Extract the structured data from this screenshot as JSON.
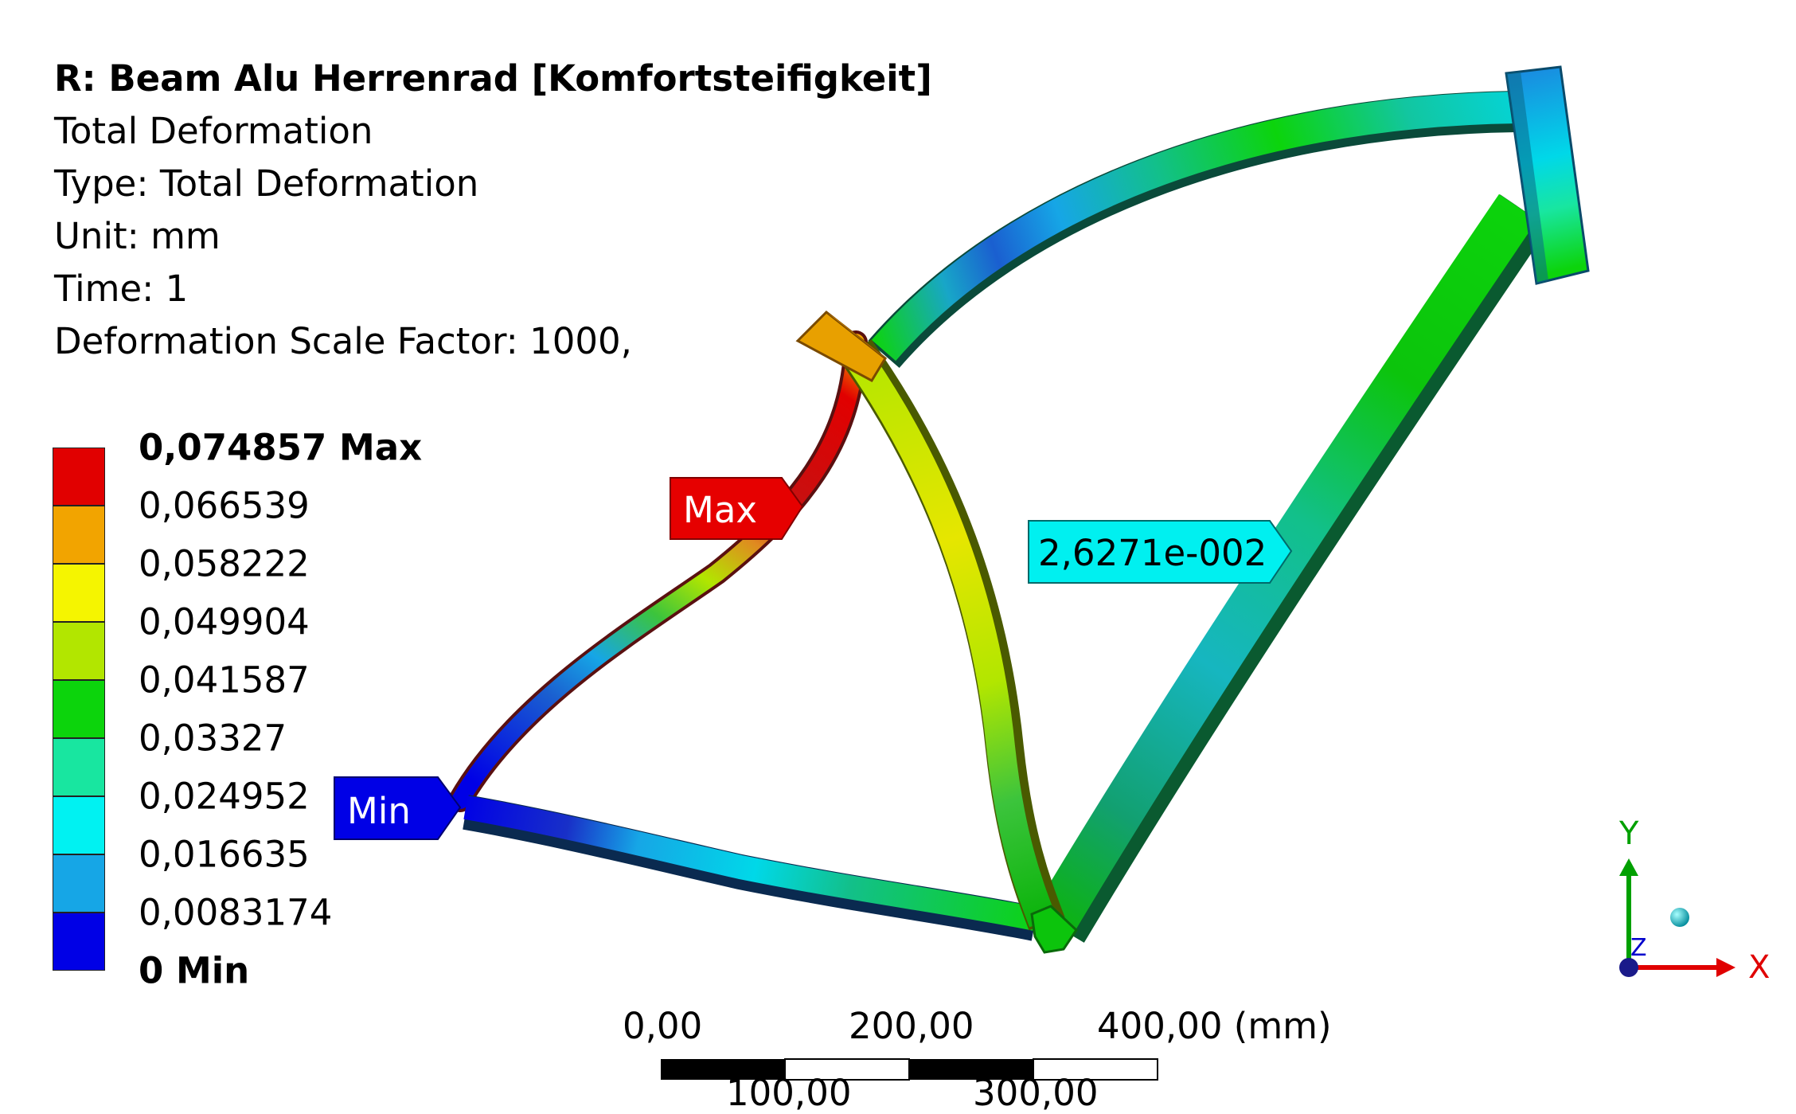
{
  "info": {
    "title": "R: Beam Alu Herrenrad [Komfortsteifigkeit]",
    "line1": "Total Deformation",
    "line2": "Type: Total Deformation",
    "line3": "Unit: mm",
    "line4": "Time: 1",
    "line5": "Deformation Scale Factor: 1000,"
  },
  "legend": {
    "labels": [
      "0,074857 Max",
      "0,066539",
      "0,058222",
      "0,049904",
      "0,041587",
      "0,03327",
      "0,024952",
      "0,016635",
      "0,0083174",
      "0 Min"
    ],
    "colors": [
      "#e10000",
      "#f2a400",
      "#f5f500",
      "#b2e600",
      "#0cd40c",
      "#18e6a0",
      "#00f2f2",
      "#16a6e6",
      "#0000e6"
    ]
  },
  "probes": {
    "max_label": "Max",
    "min_label": "Min",
    "value_label": "2,6271e-002",
    "max_color": "#e60000",
    "min_color": "#0000e6",
    "value_color": "#00f0f0"
  },
  "scale_bar": {
    "top_labels": [
      "0,00",
      "200,00",
      "400,00 (mm)"
    ],
    "bottom_labels": [
      "100,00",
      "300,00"
    ]
  },
  "triad": {
    "x_label": "X",
    "y_label": "Y",
    "z_label": "Z",
    "x_color": "#e00000",
    "y_color": "#00a000",
    "z_color": "#0000cc"
  }
}
